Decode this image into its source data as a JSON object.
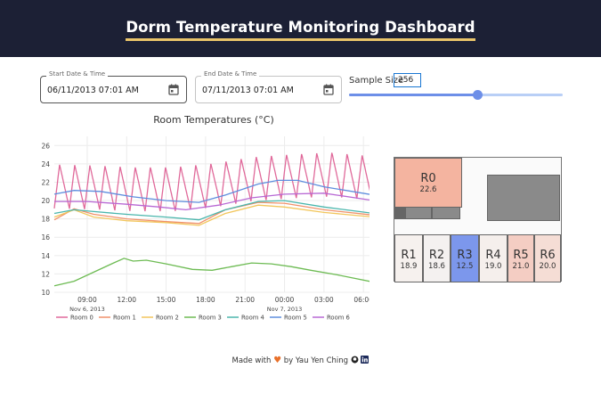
{
  "header": {
    "title": "Dorm Temperature Monitoring Dashboard"
  },
  "controls": {
    "start": {
      "label": "Start Date & Time",
      "value": "06/11/2013 07:01 AM"
    },
    "end": {
      "label": "End Date & Time",
      "value": "07/11/2013 07:01 AM"
    },
    "sample_size": {
      "label": "Sample Size",
      "value": "256",
      "slider_fraction": 0.6
    }
  },
  "chart_data": {
    "type": "line",
    "title": "Room Temperatures (°C)",
    "x_ticks": [
      "09:00",
      "12:00",
      "15:00",
      "18:00",
      "21:00",
      "00:00",
      "03:00",
      "06:00"
    ],
    "x_tick_sublabels": [
      "Nov 6, 2013",
      "",
      "",
      "",
      "",
      "Nov 7, 2013",
      "",
      ""
    ],
    "x_range_hours": [
      6.5,
      30.8
    ],
    "ylim": [
      10,
      27
    ],
    "y_ticks": [
      10,
      12,
      14,
      16,
      18,
      20,
      22,
      24,
      26
    ],
    "grid": true,
    "legend_position": "bottom",
    "series": [
      {
        "name": "Room 0",
        "color": "#e0699a",
        "kind": "oscillating",
        "base_points": [
          [
            6.5,
            21.3
          ],
          [
            9.5,
            21.2
          ],
          [
            12.5,
            21.0
          ],
          [
            15.5,
            21.0
          ],
          [
            18.5,
            21.4
          ],
          [
            21.5,
            22.1
          ],
          [
            24.5,
            22.4
          ],
          [
            27.5,
            22.6
          ],
          [
            30.8,
            22.2
          ]
        ],
        "amplitude": 3.0,
        "period_hours": 1.15
      },
      {
        "name": "Room 1",
        "color": "#f0916a",
        "points": [
          [
            6.5,
            17.9
          ],
          [
            8,
            19.1
          ],
          [
            9.5,
            18.5
          ],
          [
            12,
            18.0
          ],
          [
            15,
            17.7
          ],
          [
            17.5,
            17.5
          ],
          [
            19.5,
            19.0
          ],
          [
            22,
            19.8
          ],
          [
            24,
            19.7
          ],
          [
            27,
            19.0
          ],
          [
            30.8,
            18.4
          ]
        ]
      },
      {
        "name": "Room 2",
        "color": "#f2c65c",
        "points": [
          [
            6.5,
            18.2
          ],
          [
            8,
            19.0
          ],
          [
            9.5,
            18.2
          ],
          [
            12,
            17.8
          ],
          [
            15,
            17.6
          ],
          [
            17.5,
            17.3
          ],
          [
            19.5,
            18.6
          ],
          [
            22,
            19.5
          ],
          [
            24,
            19.3
          ],
          [
            27,
            18.7
          ],
          [
            30.8,
            18.2
          ]
        ]
      },
      {
        "name": "Room 3",
        "color": "#6dbb53",
        "points": [
          [
            6.5,
            10.7
          ],
          [
            8,
            11.2
          ],
          [
            9.5,
            12.2
          ],
          [
            11,
            13.2
          ],
          [
            11.8,
            13.7
          ],
          [
            12.5,
            13.4
          ],
          [
            13.5,
            13.5
          ],
          [
            15,
            13.1
          ],
          [
            17,
            12.5
          ],
          [
            18.5,
            12.4
          ],
          [
            20,
            12.8
          ],
          [
            21.5,
            13.2
          ],
          [
            23,
            13.1
          ],
          [
            24.5,
            12.8
          ],
          [
            26,
            12.4
          ],
          [
            28,
            11.9
          ],
          [
            30.8,
            11.1
          ]
        ]
      },
      {
        "name": "Room 4",
        "color": "#4ab6ac",
        "points": [
          [
            6.5,
            18.6
          ],
          [
            8,
            19.0
          ],
          [
            9.5,
            18.8
          ],
          [
            12,
            18.5
          ],
          [
            15,
            18.2
          ],
          [
            17.5,
            17.9
          ],
          [
            19.5,
            19.0
          ],
          [
            22,
            19.9
          ],
          [
            24,
            20.0
          ],
          [
            27,
            19.3
          ],
          [
            30.8,
            18.6
          ]
        ]
      },
      {
        "name": "Room 5",
        "color": "#5e8dde",
        "points": [
          [
            6.5,
            20.7
          ],
          [
            8,
            21.1
          ],
          [
            10,
            21.0
          ],
          [
            12.5,
            20.4
          ],
          [
            15,
            20.0
          ],
          [
            17.5,
            19.8
          ],
          [
            19.5,
            20.6
          ],
          [
            22,
            21.8
          ],
          [
            23.5,
            22.2
          ],
          [
            25,
            22.2
          ],
          [
            27,
            21.5
          ],
          [
            30.8,
            20.6
          ]
        ]
      },
      {
        "name": "Room 6",
        "color": "#b868d4",
        "points": [
          [
            6.5,
            19.9
          ],
          [
            9,
            19.9
          ],
          [
            12,
            19.6
          ],
          [
            14.5,
            19.3
          ],
          [
            16.5,
            19.0
          ],
          [
            19,
            19.5
          ],
          [
            21.5,
            20.3
          ],
          [
            24,
            20.7
          ],
          [
            27,
            20.8
          ],
          [
            30.8,
            20.0
          ]
        ]
      }
    ]
  },
  "floorplan": {
    "rooms": [
      {
        "name": "R0",
        "temp": "22.6",
        "color": "#f4b4a0"
      },
      {
        "name": "R1",
        "temp": "18.9",
        "color": "#f6f1ee"
      },
      {
        "name": "R2",
        "temp": "18.6",
        "color": "#f4f1f0"
      },
      {
        "name": "R3",
        "temp": "12.5",
        "color": "#7c97ec"
      },
      {
        "name": "R4",
        "temp": "19.0",
        "color": "#f5efec"
      },
      {
        "name": "R5",
        "temp": "21.0",
        "color": "#f4cdc3"
      },
      {
        "name": "R6",
        "temp": "20.0",
        "color": "#f5ddd5"
      }
    ]
  },
  "footer": {
    "made_with": "Made with",
    "by": "by Yau Yen Ching"
  }
}
